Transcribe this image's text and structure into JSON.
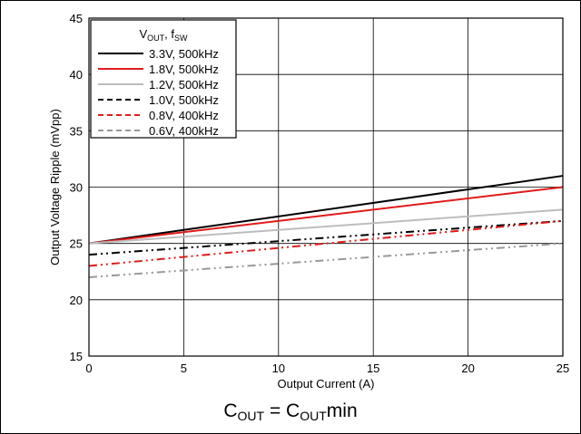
{
  "chart_data": {
    "type": "line",
    "xlabel": "Output Current (A)",
    "ylabel": "Output Voltage Ripple (mVpp)",
    "xlim": [
      0,
      25
    ],
    "ylim": [
      15,
      45
    ],
    "x_ticks": [
      0,
      5,
      10,
      15,
      20,
      25
    ],
    "y_ticks": [
      15,
      20,
      25,
      30,
      35,
      40,
      45
    ],
    "grid": true,
    "legend_placement": "top-left",
    "legend_title_parts": {
      "v": "V",
      "v_sub": "OUT",
      "sep": ", f",
      "f_sub": "SW"
    },
    "series": [
      {
        "name": "3.3V, 500kHz",
        "color": "#000000",
        "style": "solid",
        "x": [
          0,
          25
        ],
        "y": [
          25,
          31
        ]
      },
      {
        "name": "1.8V, 500kHz",
        "color": "#e01b1b",
        "style": "solid",
        "x": [
          0,
          25
        ],
        "y": [
          25,
          30
        ]
      },
      {
        "name": "1.2V, 500kHz",
        "color": "#bdbdbd",
        "style": "solid",
        "x": [
          0,
          25
        ],
        "y": [
          25,
          28
        ]
      },
      {
        "name": "1.0V, 500kHz",
        "color": "#000000",
        "style": "dashdotdot",
        "x": [
          0,
          25
        ],
        "y": [
          24,
          27
        ]
      },
      {
        "name": "0.8V, 400kHz",
        "color": "#e01b1b",
        "style": "dashdotdot",
        "x": [
          0,
          25
        ],
        "y": [
          23,
          27
        ]
      },
      {
        "name": "0.6V, 400kHz",
        "color": "#999999",
        "style": "dashdotdot",
        "x": [
          0,
          25
        ],
        "y": [
          22,
          25
        ]
      }
    ]
  },
  "caption": {
    "c1": "C",
    "c1_sub": "OUT",
    "eq": " = C",
    "c2_sub": "OUT",
    "tail": "min"
  }
}
